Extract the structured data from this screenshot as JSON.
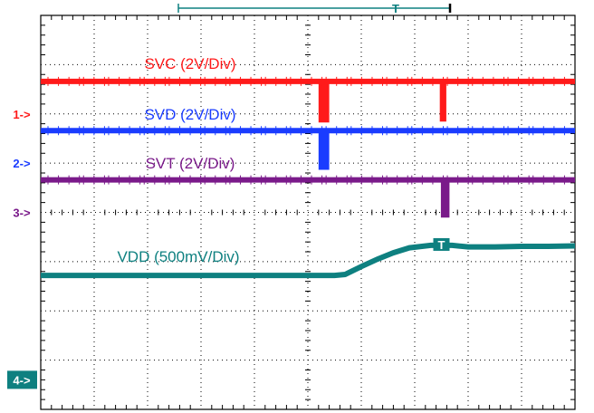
{
  "chart_data": {
    "type": "line",
    "title": "",
    "xlabel": "",
    "ylabel": "",
    "grid": true,
    "divisions": {
      "x": 10,
      "y": 8
    },
    "subdivisions_per_div": 5,
    "xlim": [
      0,
      10
    ],
    "ylim": [
      0,
      8
    ],
    "series": [
      {
        "name": "SVC (2V/Div)",
        "channel": "1",
        "color": "#ff1a1a",
        "x": [
          0,
          5.25,
          5.25,
          5.35,
          5.35,
          7.52,
          7.52,
          7.54,
          7.54,
          10
        ],
        "y": [
          6.66,
          6.66,
          5.88,
          5.88,
          6.66,
          6.66,
          5.9,
          5.9,
          6.66,
          6.66
        ]
      },
      {
        "name": "SVD (2V/Div)",
        "channel": "2",
        "color": "#1a3cff",
        "x": [
          0,
          5.25,
          5.25,
          5.35,
          5.35,
          10
        ],
        "y": [
          5.66,
          5.66,
          4.92,
          4.92,
          5.66,
          5.66
        ]
      },
      {
        "name": "SVT (2V/Div)",
        "channel": "3",
        "color": "#7a1a8a",
        "x": [
          0,
          7.54,
          7.54,
          7.6,
          7.6,
          10
        ],
        "y": [
          4.66,
          4.66,
          3.95,
          3.95,
          4.66,
          4.66
        ]
      },
      {
        "name": "VDD (500mV/Div)",
        "channel": "4",
        "color": "#0e8080",
        "x": [
          0,
          5.5,
          5.7,
          6.0,
          6.3,
          6.6,
          6.9,
          7.3,
          7.7,
          8.0,
          8.5,
          9.0,
          9.5,
          10
        ],
        "y": [
          2.72,
          2.72,
          2.74,
          2.9,
          3.05,
          3.18,
          3.28,
          3.33,
          3.33,
          3.3,
          3.3,
          3.31,
          3.31,
          3.32
        ]
      }
    ],
    "channel_markers": [
      {
        "label": "1->",
        "color": "#ff1a1a",
        "level": 6.0
      },
      {
        "label": "2->",
        "color": "#1a3cff",
        "level": 5.0
      },
      {
        "label": "3->",
        "color": "#7a1a8a",
        "level": 4.0
      },
      {
        "label": "4->",
        "color": "#0e8080",
        "level": 0.6,
        "boxed": true
      }
    ],
    "trigger_marker": {
      "glyph": "T",
      "color": "#0e8080"
    },
    "cursor_marker": {
      "glyph": "T",
      "color": "#0e8080"
    }
  }
}
